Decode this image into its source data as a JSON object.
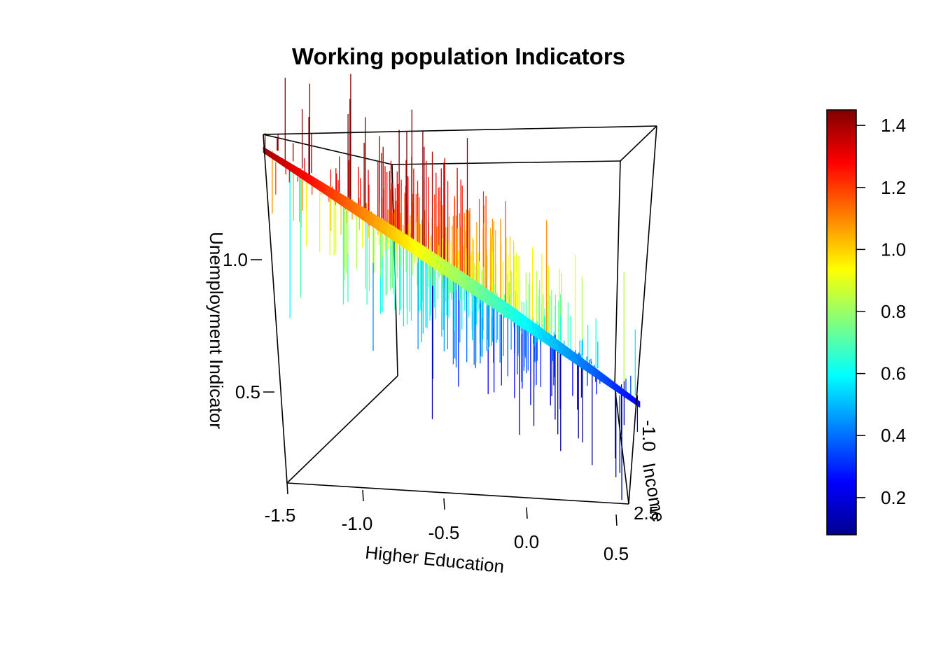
{
  "chart_data": {
    "type": "scatter3d",
    "title": "Working population Indicators",
    "xlabel": "Higher Education",
    "ylabel": "Income",
    "zlabel": "Unemployment Indicator",
    "x_ticks": [
      "-1.5",
      "-1.0",
      "-0.5",
      "0.0",
      "0.5"
    ],
    "y_ticks": [
      "-1.0",
      "2.5"
    ],
    "z_ticks": [
      "1.0",
      "0.5"
    ],
    "xlim": [
      -1.6,
      0.65
    ],
    "zlim": [
      0.2,
      1.45
    ],
    "regression_plane": {
      "z_at_x_min": 1.41,
      "z_at_x_max": 0.24
    },
    "colorbar": {
      "ticks": [
        "1.4",
        "1.2",
        "1.0",
        "0.8",
        "0.6",
        "0.4",
        "0.2"
      ],
      "range": [
        0.08,
        1.45
      ],
      "colors": [
        "#00008F",
        "#0000FF",
        "#0080FF",
        "#00FFFF",
        "#80FF80",
        "#FFFF00",
        "#FF8000",
        "#FF0000",
        "#800000"
      ]
    }
  }
}
